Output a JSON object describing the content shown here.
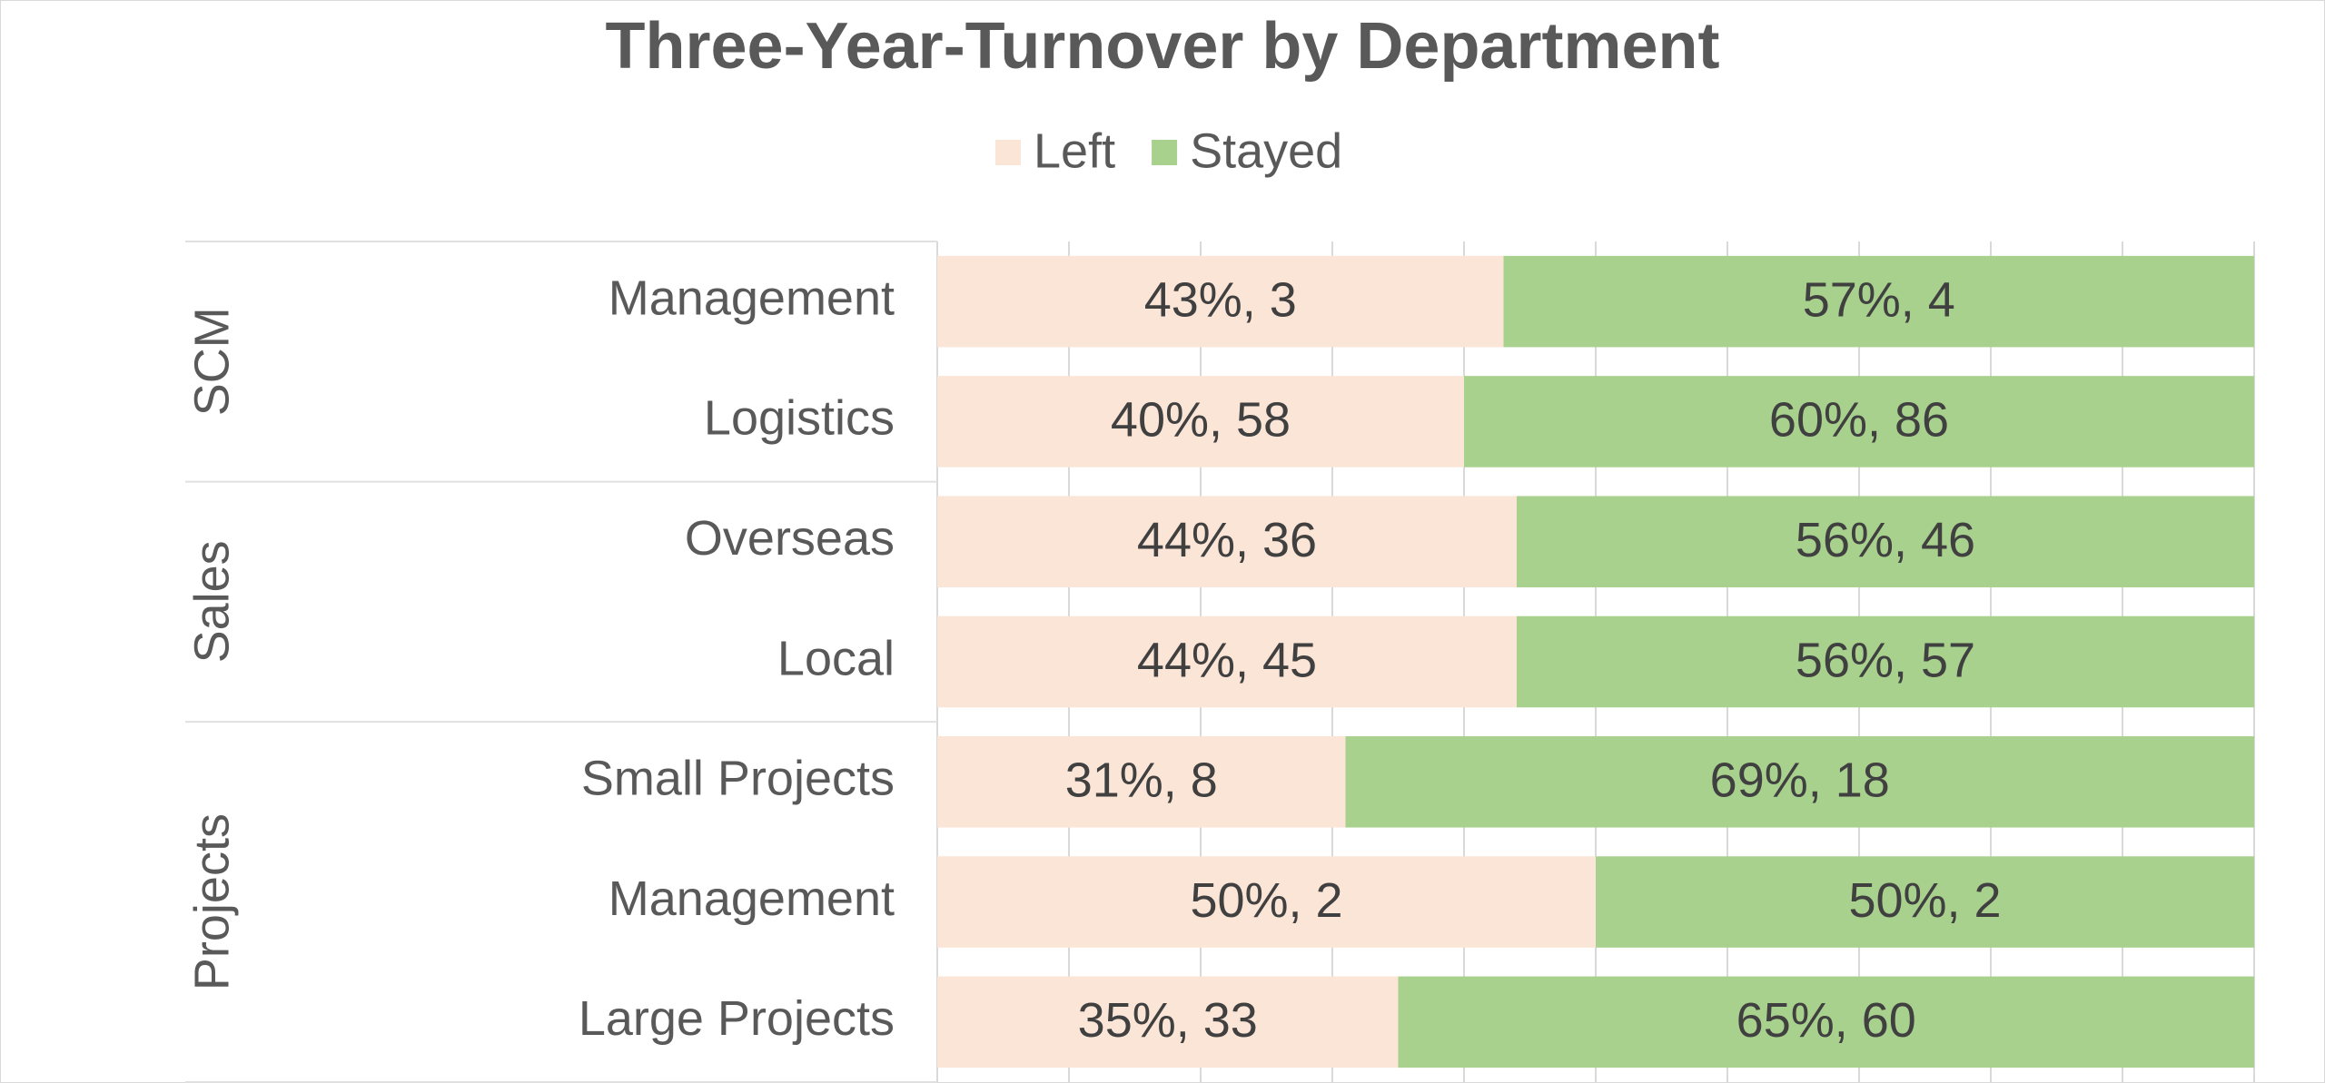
{
  "chart_data": {
    "type": "bar",
    "orientation": "horizontal",
    "stacked": true,
    "title": "Three-Year-Turnover by Department",
    "groups": [
      {
        "label": "SCM",
        "categories": [
          "Management",
          "Logistics"
        ]
      },
      {
        "label": "Sales",
        "categories": [
          "Overseas",
          "Local"
        ]
      },
      {
        "label": "Projects",
        "categories": [
          "Small Projects",
          "Management",
          "Large Projects"
        ]
      }
    ],
    "series": [
      {
        "name": "Left",
        "color": "#FBE5D6",
        "values": [
          43,
          40,
          44,
          44,
          31,
          50,
          35
        ],
        "value_labels": [
          "43%, 3",
          "40%, 58",
          "44%, 36",
          "44%, 45",
          "31%, 8",
          "50%, 2",
          "35%, 33"
        ]
      },
      {
        "name": "Stayed",
        "color": "#A9D18E",
        "values": [
          57,
          60,
          56,
          56,
          69,
          50,
          65
        ],
        "value_labels": [
          "57%, 4",
          "60%, 86",
          "56%, 46",
          "56%, 57",
          "69%, 18",
          "50%, 2",
          "65%, 60"
        ]
      }
    ],
    "xlim": [
      0,
      100
    ],
    "xticks": [
      0,
      10,
      20,
      30,
      40,
      50,
      60,
      70,
      80,
      90,
      100
    ],
    "grid": true,
    "legend": "top"
  }
}
